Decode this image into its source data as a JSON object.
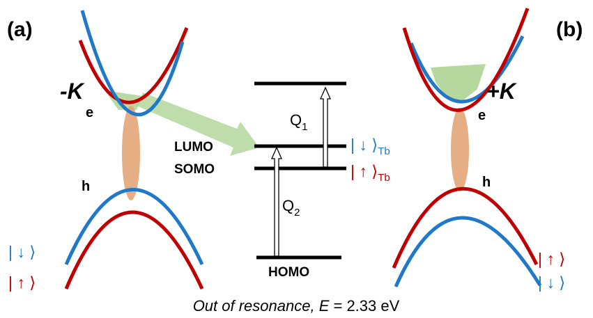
{
  "panels": [
    {
      "label": "(a)",
      "valley": "-K",
      "electron": "e",
      "hole": "h",
      "spin_labels": [
        "| ↓ ⟩",
        "| ↑ ⟩"
      ]
    },
    {
      "label": "(b)",
      "valley": "+K",
      "electron": "e",
      "hole": "h",
      "spin_labels": [
        "| ↑ ⟩",
        "| ↓ ⟩"
      ]
    }
  ],
  "levels": {
    "lumo": "LUMO",
    "somo": "SOMO",
    "homo": "HOMO"
  },
  "transitions": [
    {
      "symbol": "Q",
      "subscript": "1"
    },
    {
      "symbol": "Q",
      "subscript": "2"
    }
  ],
  "states": [
    {
      "ket": "| ↓ ⟩",
      "subscript": "Tb"
    },
    {
      "ket": "| ↑ ⟩",
      "subscript": "Tb"
    }
  ],
  "caption": {
    "prefix": "Out of resonance, ",
    "variable": "E",
    "rest": " = 2.33 eV"
  }
}
